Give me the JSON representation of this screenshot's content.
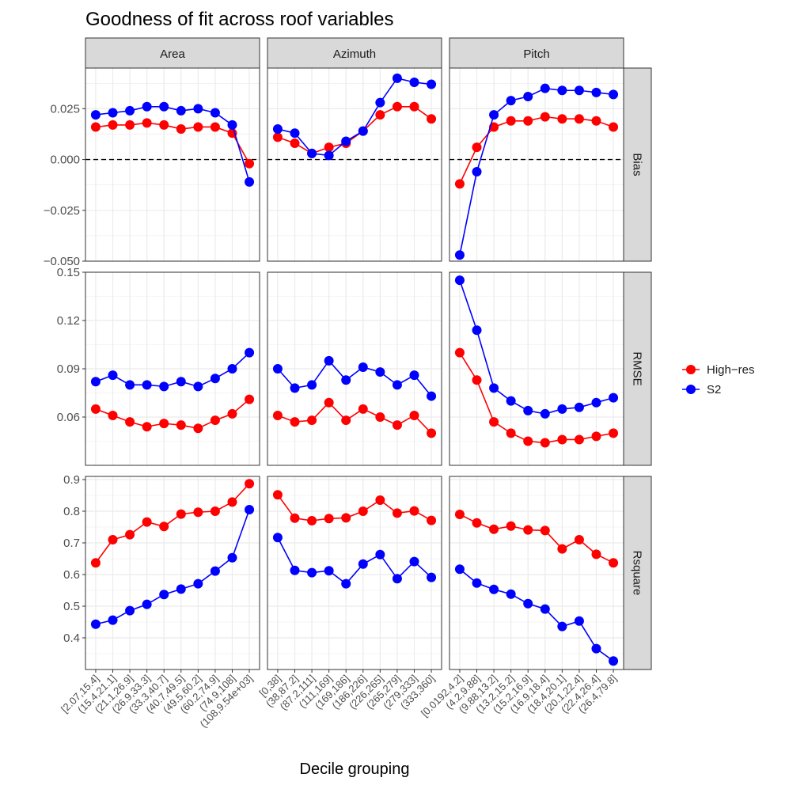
{
  "chart_data": {
    "type": "line",
    "title": "Goodness of fit across roof variables",
    "xlabel": "Decile grouping",
    "ylabel": "",
    "legend": {
      "placement": "right",
      "entries": [
        "High−res",
        "S2"
      ]
    },
    "colors": {
      "High-res": "#ff0000",
      "S2": "#0000ff",
      "strip": "#d9d9d9",
      "grid": "#ebebeb",
      "zero_line": "#000000"
    },
    "grid": true,
    "columns": [
      "Area",
      "Azimuth",
      "Pitch"
    ],
    "rows": [
      {
        "name": "Bias",
        "ylim": [
          -0.05,
          0.045
        ],
        "ticks": [
          -0.05,
          -0.025,
          0.0,
          0.025
        ],
        "tick_labels": [
          "−0.050",
          "−0.025",
          "0.000",
          "0.025"
        ],
        "hline": 0
      },
      {
        "name": "RMSE",
        "ylim": [
          0.03,
          0.15
        ],
        "ticks": [
          0.06,
          0.09,
          0.12,
          0.15
        ],
        "tick_labels": [
          "0.06",
          "0.09",
          "0.12",
          "0.15"
        ]
      },
      {
        "name": "Rsquare",
        "ylim": [
          0.3,
          0.91
        ],
        "ticks": [
          0.4,
          0.5,
          0.6,
          0.7,
          0.8,
          0.9
        ],
        "tick_labels": [
          "0.4",
          "0.5",
          "0.6",
          "0.7",
          "0.8",
          "0.9"
        ]
      }
    ],
    "categories": {
      "Area": [
        "[2.07,15.4]",
        "(15.4,21.1]",
        "(21.1,26.9]",
        "(26.9,33.3]",
        "(33.3,40.7]",
        "(40.7,49.5]",
        "(49.5,60.2]",
        "(60.2,74.9]",
        "(74.9,108]",
        "(108,9.54e+03]"
      ],
      "Azimuth": [
        "[0,38]",
        "(38,87.2]",
        "(87.2,111]",
        "(111,169]",
        "(169,186]",
        "(186,226]",
        "(226,265]",
        "(265,279]",
        "(279,333]",
        "(333,360]"
      ],
      "Pitch": [
        "[0.0192,4.2]",
        "(4.2,9.88]",
        "(9.88,13.2]",
        "(13.2,15.2]",
        "(15.2,16.9]",
        "(16.9,18.4]",
        "(18.4,20.1]",
        "(20.1,22.4]",
        "(22.4,26.4]",
        "(26.4,79.8]"
      ]
    },
    "series": [
      {
        "name": "High−res",
        "values": {
          "Bias": {
            "Area": [
              0.016,
              0.017,
              0.017,
              0.018,
              0.017,
              0.015,
              0.016,
              0.016,
              0.013,
              -0.002
            ],
            "Azimuth": [
              0.011,
              0.008,
              0.003,
              0.006,
              0.008,
              0.014,
              0.022,
              0.026,
              0.026,
              0.02
            ],
            "Pitch": [
              -0.012,
              0.006,
              0.016,
              0.019,
              0.019,
              0.021,
              0.02,
              0.02,
              0.019,
              0.016
            ]
          },
          "RMSE": {
            "Area": [
              0.065,
              0.061,
              0.057,
              0.054,
              0.056,
              0.055,
              0.053,
              0.058,
              0.062,
              0.071
            ],
            "Azimuth": [
              0.061,
              0.057,
              0.058,
              0.069,
              0.058,
              0.065,
              0.06,
              0.055,
              0.061,
              0.05
            ],
            "Pitch": [
              0.1,
              0.083,
              0.057,
              0.05,
              0.045,
              0.044,
              0.046,
              0.046,
              0.048,
              0.05
            ]
          },
          "Rsquare": {
            "Area": [
              0.637,
              0.71,
              0.726,
              0.766,
              0.752,
              0.791,
              0.797,
              0.8,
              0.829,
              0.887
            ],
            "Azimuth": [
              0.852,
              0.778,
              0.77,
              0.777,
              0.779,
              0.8,
              0.835,
              0.794,
              0.801,
              0.771
            ],
            "Pitch": [
              0.79,
              0.763,
              0.743,
              0.753,
              0.741,
              0.739,
              0.681,
              0.71,
              0.664,
              0.637
            ]
          }
        }
      },
      {
        "name": "S2",
        "values": {
          "Bias": {
            "Area": [
              0.022,
              0.023,
              0.024,
              0.026,
              0.026,
              0.024,
              0.025,
              0.023,
              0.017,
              -0.011
            ],
            "Azimuth": [
              0.015,
              0.013,
              0.003,
              0.002,
              0.009,
              0.014,
              0.028,
              0.04,
              0.038,
              0.037
            ],
            "Pitch": [
              -0.047,
              -0.006,
              0.022,
              0.029,
              0.031,
              0.035,
              0.034,
              0.034,
              0.033,
              0.032
            ]
          },
          "RMSE": {
            "Area": [
              0.082,
              0.086,
              0.08,
              0.08,
              0.079,
              0.082,
              0.079,
              0.084,
              0.09,
              0.1
            ],
            "Azimuth": [
              0.09,
              0.078,
              0.08,
              0.095,
              0.083,
              0.091,
              0.088,
              0.08,
              0.086,
              0.073
            ],
            "Pitch": [
              0.145,
              0.114,
              0.078,
              0.07,
              0.064,
              0.062,
              0.065,
              0.066,
              0.069,
              0.072
            ]
          },
          "Rsquare": {
            "Area": [
              0.443,
              0.456,
              0.486,
              0.506,
              0.537,
              0.554,
              0.571,
              0.611,
              0.653,
              0.805
            ],
            "Azimuth": [
              0.717,
              0.613,
              0.606,
              0.612,
              0.571,
              0.633,
              0.663,
              0.587,
              0.641,
              0.591
            ],
            "Pitch": [
              0.617,
              0.573,
              0.553,
              0.538,
              0.508,
              0.491,
              0.436,
              0.453,
              0.366,
              0.327
            ]
          }
        }
      }
    ]
  }
}
